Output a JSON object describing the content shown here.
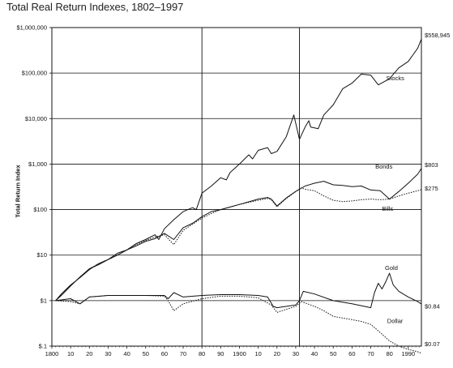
{
  "chart_data": {
    "type": "line",
    "title": "Total Real Return Indexes, 1802–1997",
    "ylabel": "Total Return Index",
    "xlabel": "",
    "yscale": "log",
    "ylim": [
      0.1,
      1000000
    ],
    "xlim": [
      1800,
      1997
    ],
    "grid": "horizontal lines at each decade of the y axis; vertical lines at 1880 and 1932",
    "y_ticks": [
      {
        "value": 1000000,
        "label": "$1,000,000"
      },
      {
        "value": 100000,
        "label": "$100,000"
      },
      {
        "value": 10000,
        "label": "$10,000"
      },
      {
        "value": 1000,
        "label": "$1,000"
      },
      {
        "value": 100,
        "label": "$100"
      },
      {
        "value": 10,
        "label": "$10"
      },
      {
        "value": 1,
        "label": "$1"
      },
      {
        "value": 0.1,
        "label": "$.1"
      }
    ],
    "x_ticks": [
      {
        "value": 1800,
        "label": "1800"
      },
      {
        "value": 1810,
        "label": "10"
      },
      {
        "value": 1820,
        "label": "20"
      },
      {
        "value": 1830,
        "label": "30"
      },
      {
        "value": 1840,
        "label": "40"
      },
      {
        "value": 1850,
        "label": "50"
      },
      {
        "value": 1860,
        "label": "60"
      },
      {
        "value": 1870,
        "label": "70"
      },
      {
        "value": 1880,
        "label": "80"
      },
      {
        "value": 1890,
        "label": "90"
      },
      {
        "value": 1900,
        "label": "1900"
      },
      {
        "value": 1910,
        "label": "10"
      },
      {
        "value": 1920,
        "label": "20"
      },
      {
        "value": 1930,
        "label": "30"
      },
      {
        "value": 1940,
        "label": "40"
      },
      {
        "value": 1950,
        "label": "50"
      },
      {
        "value": 1960,
        "label": "60"
      },
      {
        "value": 1970,
        "label": "70"
      },
      {
        "value": 1980,
        "label": "80"
      },
      {
        "value": 1990,
        "label": "1990"
      }
    ],
    "vlines": [
      1880,
      1932
    ],
    "series": [
      {
        "name": "Stocks",
        "end_label": "$558,945",
        "style": "solid",
        "points": [
          [
            1802,
            1
          ],
          [
            1805,
            1.4
          ],
          [
            1810,
            2.2
          ],
          [
            1815,
            3.2
          ],
          [
            1820,
            4.8
          ],
          [
            1825,
            6.5
          ],
          [
            1830,
            8
          ],
          [
            1835,
            11
          ],
          [
            1840,
            13
          ],
          [
            1845,
            18
          ],
          [
            1850,
            22
          ],
          [
            1855,
            28
          ],
          [
            1857,
            22
          ],
          [
            1860,
            38
          ],
          [
            1865,
            60
          ],
          [
            1870,
            90
          ],
          [
            1875,
            110
          ],
          [
            1877,
            100
          ],
          [
            1880,
            230
          ],
          [
            1885,
            330
          ],
          [
            1890,
            500
          ],
          [
            1893,
            450
          ],
          [
            1895,
            650
          ],
          [
            1900,
            1000
          ],
          [
            1905,
            1600
          ],
          [
            1907,
            1300
          ],
          [
            1910,
            2000
          ],
          [
            1915,
            2300
          ],
          [
            1917,
            1700
          ],
          [
            1920,
            1900
          ],
          [
            1925,
            4000
          ],
          [
            1929,
            12000
          ],
          [
            1932,
            3500
          ],
          [
            1935,
            6500
          ],
          [
            1937,
            9000
          ],
          [
            1938,
            6500
          ],
          [
            1942,
            6000
          ],
          [
            1945,
            12000
          ],
          [
            1950,
            20000
          ],
          [
            1955,
            45000
          ],
          [
            1960,
            60000
          ],
          [
            1965,
            95000
          ],
          [
            1970,
            90000
          ],
          [
            1974,
            55000
          ],
          [
            1980,
            75000
          ],
          [
            1985,
            130000
          ],
          [
            1990,
            180000
          ],
          [
            1995,
            350000
          ],
          [
            1997,
            558945
          ]
        ]
      },
      {
        "name": "Bonds",
        "end_label": "$803",
        "style": "solid",
        "points": [
          [
            1802,
            1
          ],
          [
            1805,
            1.3
          ],
          [
            1810,
            2.1
          ],
          [
            1815,
            3.3
          ],
          [
            1820,
            5
          ],
          [
            1825,
            6.2
          ],
          [
            1830,
            8
          ],
          [
            1835,
            10
          ],
          [
            1840,
            13
          ],
          [
            1845,
            16
          ],
          [
            1850,
            20
          ],
          [
            1855,
            23
          ],
          [
            1860,
            30
          ],
          [
            1865,
            22
          ],
          [
            1870,
            40
          ],
          [
            1875,
            50
          ],
          [
            1880,
            70
          ],
          [
            1885,
            90
          ],
          [
            1890,
            100
          ],
          [
            1900,
            130
          ],
          [
            1910,
            170
          ],
          [
            1915,
            185
          ],
          [
            1917,
            170
          ],
          [
            1920,
            120
          ],
          [
            1925,
            180
          ],
          [
            1930,
            250
          ],
          [
            1935,
            330
          ],
          [
            1940,
            380
          ],
          [
            1945,
            420
          ],
          [
            1950,
            350
          ],
          [
            1955,
            340
          ],
          [
            1960,
            320
          ],
          [
            1965,
            330
          ],
          [
            1970,
            270
          ],
          [
            1975,
            260
          ],
          [
            1980,
            170
          ],
          [
            1985,
            250
          ],
          [
            1990,
            380
          ],
          [
            1995,
            600
          ],
          [
            1997,
            803
          ]
        ]
      },
      {
        "name": "Bills",
        "end_label": "$275",
        "style": "dotted",
        "points": [
          [
            1802,
            1
          ],
          [
            1805,
            1.3
          ],
          [
            1810,
            2.1
          ],
          [
            1815,
            3.3
          ],
          [
            1820,
            5
          ],
          [
            1825,
            6.5
          ],
          [
            1830,
            8
          ],
          [
            1835,
            10
          ],
          [
            1840,
            13
          ],
          [
            1845,
            17
          ],
          [
            1850,
            21
          ],
          [
            1855,
            25
          ],
          [
            1860,
            28
          ],
          [
            1865,
            17
          ],
          [
            1870,
            35
          ],
          [
            1875,
            48
          ],
          [
            1880,
            65
          ],
          [
            1885,
            82
          ],
          [
            1890,
            100
          ],
          [
            1900,
            130
          ],
          [
            1910,
            160
          ],
          [
            1915,
            175
          ],
          [
            1917,
            165
          ],
          [
            1920,
            115
          ],
          [
            1925,
            175
          ],
          [
            1930,
            250
          ],
          [
            1933,
            300
          ],
          [
            1935,
            280
          ],
          [
            1940,
            260
          ],
          [
            1945,
            200
          ],
          [
            1950,
            160
          ],
          [
            1955,
            150
          ],
          [
            1960,
            155
          ],
          [
            1965,
            165
          ],
          [
            1970,
            170
          ],
          [
            1975,
            165
          ],
          [
            1980,
            170
          ],
          [
            1985,
            200
          ],
          [
            1990,
            230
          ],
          [
            1995,
            260
          ],
          [
            1997,
            275
          ]
        ]
      },
      {
        "name": "Gold",
        "end_label": "$0.84",
        "style": "solid",
        "points": [
          [
            1802,
            1
          ],
          [
            1810,
            1.1
          ],
          [
            1815,
            0.85
          ],
          [
            1820,
            1.2
          ],
          [
            1830,
            1.3
          ],
          [
            1840,
            1.3
          ],
          [
            1850,
            1.3
          ],
          [
            1860,
            1.3
          ],
          [
            1862,
            1.1
          ],
          [
            1865,
            1.5
          ],
          [
            1870,
            1.2
          ],
          [
            1880,
            1.3
          ],
          [
            1890,
            1.35
          ],
          [
            1900,
            1.35
          ],
          [
            1910,
            1.3
          ],
          [
            1915,
            1.2
          ],
          [
            1918,
            0.75
          ],
          [
            1920,
            0.7
          ],
          [
            1930,
            0.8
          ],
          [
            1932,
            1
          ],
          [
            1934,
            1.6
          ],
          [
            1940,
            1.4
          ],
          [
            1950,
            1
          ],
          [
            1960,
            0.85
          ],
          [
            1970,
            0.7
          ],
          [
            1972,
            1.5
          ],
          [
            1974,
            2.4
          ],
          [
            1976,
            1.8
          ],
          [
            1978,
            2.6
          ],
          [
            1980,
            4
          ],
          [
            1982,
            2.2
          ],
          [
            1985,
            1.6
          ],
          [
            1990,
            1.2
          ],
          [
            1995,
            0.95
          ],
          [
            1997,
            0.84
          ]
        ]
      },
      {
        "name": "Dollar",
        "end_label": "$0.07",
        "style": "dotted",
        "points": [
          [
            1802,
            1
          ],
          [
            1810,
            0.95
          ],
          [
            1815,
            0.85
          ],
          [
            1820,
            1.2
          ],
          [
            1830,
            1.3
          ],
          [
            1840,
            1.3
          ],
          [
            1850,
            1.3
          ],
          [
            1860,
            1.25
          ],
          [
            1862,
            1.0
          ],
          [
            1865,
            0.6
          ],
          [
            1870,
            0.85
          ],
          [
            1880,
            1.1
          ],
          [
            1890,
            1.25
          ],
          [
            1900,
            1.25
          ],
          [
            1910,
            1.15
          ],
          [
            1917,
            0.8
          ],
          [
            1920,
            0.55
          ],
          [
            1930,
            0.75
          ],
          [
            1933,
            0.95
          ],
          [
            1940,
            0.75
          ],
          [
            1945,
            0.6
          ],
          [
            1950,
            0.45
          ],
          [
            1960,
            0.38
          ],
          [
            1965,
            0.35
          ],
          [
            1970,
            0.3
          ],
          [
            1975,
            0.2
          ],
          [
            1980,
            0.13
          ],
          [
            1985,
            0.1
          ],
          [
            1990,
            0.085
          ],
          [
            1995,
            0.075
          ],
          [
            1997,
            0.07
          ]
        ]
      }
    ]
  }
}
